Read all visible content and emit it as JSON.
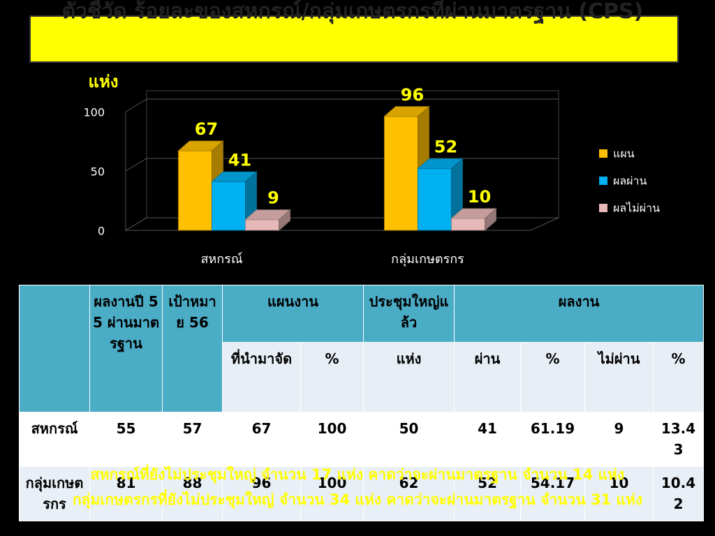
{
  "title": "ตัวชี้วัด ร้อยละของสหกรณ์/กลุ่มเกษตรกรที่ผ่านมาตรฐาน (CPS)",
  "chart_data": {
    "type": "bar",
    "y_label": "แห่ง",
    "categories": [
      "สหกรณ์",
      "กลุ่มเกษตรกร"
    ],
    "series": [
      {
        "name": "แผน",
        "color": "#ffc000",
        "values": [
          67,
          96
        ]
      },
      {
        "name": "ผลผ่าน",
        "color": "#00b0f0",
        "values": [
          41,
          52
        ]
      },
      {
        "name": "ผลไม่ผ่าน",
        "color": "#e6b9b8",
        "values": [
          9,
          10
        ]
      }
    ],
    "ylim": [
      0,
      100
    ],
    "yticks": [
      0,
      50,
      100
    ],
    "grid": true,
    "legend": "right",
    "label_color": "#ffff00"
  },
  "table": {
    "header": [
      [
        "ผลงานปี 55 ผ่านมาตรฐาน",
        "เป้าหมาย 56",
        "แผนงาน",
        "ประชุมใหญ่แล้ว",
        "ผลงาน"
      ],
      [
        "ที่นำมาจัด",
        "%",
        "แห่ง",
        "ผ่าน",
        "%",
        "ไม่ผ่าน",
        "%"
      ]
    ],
    "rows": [
      [
        "สหกรณ์",
        55,
        57,
        67,
        100,
        50,
        41,
        61.19,
        9,
        13.43
      ],
      [
        "กลุ่มเกษตรกร",
        81,
        88,
        96,
        100,
        62,
        52,
        54.17,
        10,
        10.42
      ]
    ]
  },
  "notes": [
    "สหกรณ์ที่ยังไม่ประชุมใหญ่ จำนวน 17 แห่ง คาดว่าจะผ่านมาตรฐาน จำนวน 14 แห่ง",
    "กลุ่มเกษตรกรที่ยังไม่ประชุมใหญ่ จำนวน 34 แห่ง คาดว่าจะผ่านมาตรฐาน จำนวน 31 แห่ง"
  ]
}
